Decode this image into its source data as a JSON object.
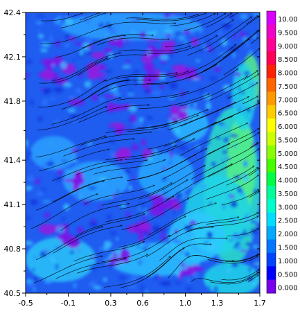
{
  "chart_data": {
    "type": "heatmap",
    "overlay": "streamlines",
    "x_ticks": [
      "-0.5",
      "-0.1",
      "0.3",
      "0.6",
      "1.0",
      "1.3",
      "1.7"
    ],
    "x_tick_values": [
      -0.5,
      -0.1,
      0.3,
      0.6,
      1.0,
      1.3,
      1.7
    ],
    "y_ticks": [
      "40.5",
      "40.8",
      "41.1",
      "41.4",
      "41.8",
      "42.1",
      "42.4"
    ],
    "y_tick_values": [
      40.5,
      40.8,
      41.1,
      41.4,
      41.8,
      42.1,
      42.4
    ],
    "xlim": [
      -0.5,
      1.7
    ],
    "ylim": [
      40.5,
      42.4
    ],
    "colorbar": {
      "labels": [
        "10.00",
        "9.500",
        "9.000",
        "8.500",
        "8.000",
        "7.500",
        "7.000",
        "6.500",
        "6.000",
        "5.500",
        "5.000",
        "4.500",
        "4.000",
        "3.500",
        "3.000",
        "2.500",
        "2.000",
        "1.500",
        "1.000",
        "0.500",
        "0.000"
      ],
      "colors": [
        "#d700ff",
        "#f000c8",
        "#ff0096",
        "#ff0055",
        "#ff2200",
        "#ff6600",
        "#ff9900",
        "#ffcc00",
        "#ffff00",
        "#ccff00",
        "#88ff00",
        "#44ff00",
        "#00ff44",
        "#00ff99",
        "#00ffcc",
        "#00ddff",
        "#00aaff",
        "#0077ff",
        "#0044ff",
        "#0000ff",
        "#7700ee"
      ]
    },
    "grid": false
  }
}
